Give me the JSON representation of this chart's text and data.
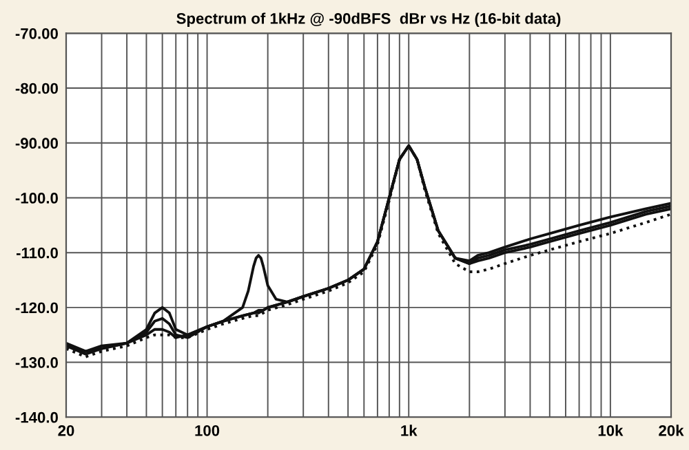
{
  "chart_data": {
    "type": "line",
    "title": "Spectrum of 1kHz @ -90dBFS  dBr vs Hz (16-bit data)",
    "x": [
      20,
      25,
      30,
      40,
      50,
      55,
      60,
      65,
      70,
      80,
      100,
      120,
      150,
      170,
      180,
      190,
      200,
      250,
      300,
      400,
      500,
      600,
      700,
      800,
      900,
      1000,
      1100,
      1200,
      1400,
      1700,
      2000,
      2200,
      2500,
      3000,
      4000,
      5000,
      7000,
      10000,
      15000,
      20000
    ],
    "series": [
      {
        "color": "#111111",
        "line_style": "solid",
        "x": [
          20,
          25,
          30,
          40,
          50,
          55,
          60,
          65,
          70,
          80,
          100,
          120,
          150,
          160,
          170,
          175,
          180,
          185,
          190,
          200,
          220,
          250,
          300,
          400,
          500,
          600,
          700,
          800,
          900,
          1000,
          1100,
          1200,
          1400,
          1700,
          2000,
          2200,
          2500,
          3000,
          4000,
          5000,
          7000,
          10000,
          15000,
          20000
        ],
        "values": [
          -127,
          -128,
          -127.5,
          -126.5,
          -124,
          -121,
          -120,
          -121,
          -124,
          -125,
          -123.5,
          -122.5,
          -120,
          -117,
          -112.5,
          -111,
          -110.5,
          -111,
          -112.5,
          -116,
          -118.5,
          -119,
          -118,
          -116.5,
          -115,
          -113,
          -108,
          -100,
          -93,
          -90.5,
          -93,
          -98,
          -106,
          -111,
          -111.5,
          -110.5,
          -110,
          -109,
          -107.5,
          -106.5,
          -105,
          -103.5,
          -102,
          -101
        ]
      },
      {
        "color": "#111111",
        "line_style": "solid",
        "values": [
          -127,
          -128.5,
          -127.5,
          -126.5,
          -124.5,
          -122.5,
          -122,
          -123,
          -125,
          -125.5,
          -123.5,
          -122.5,
          -121.5,
          -121,
          -120.5,
          -120.5,
          -120,
          -119,
          -118,
          -116.5,
          -115,
          -113,
          -108,
          -100,
          -93,
          -90.5,
          -93,
          -98,
          -106,
          -111,
          -112,
          -111,
          -110.5,
          -109.5,
          -108.5,
          -107.5,
          -106,
          -104.5,
          -102.5,
          -101.5
        ]
      },
      {
        "color": "#111111",
        "line_style": "solid",
        "values": [
          -126.5,
          -128,
          -127,
          -126.5,
          -125,
          -124,
          -124,
          -124.5,
          -125.5,
          -125,
          -123.5,
          -122.5,
          -121.5,
          -121,
          -121,
          -120.5,
          -120,
          -119,
          -118,
          -116.5,
          -115,
          -113,
          -108,
          -100,
          -93,
          -90.5,
          -93,
          -98,
          -106,
          -111,
          -112,
          -111.5,
          -111,
          -110,
          -109,
          -108,
          -106.5,
          -105,
          -103,
          -102
        ]
      },
      {
        "color": "#111111",
        "line_style": "dotted",
        "values": [
          -127.5,
          -129,
          -128,
          -127,
          -125.5,
          -125,
          -125,
          -125,
          -125.5,
          -125.5,
          -124,
          -123,
          -122,
          -121.5,
          -121.5,
          -121,
          -120.5,
          -119.5,
          -118.5,
          -117,
          -115.5,
          -113.5,
          -108.5,
          -100.5,
          -93,
          -90.5,
          -93,
          -98.5,
          -106.5,
          -112,
          -113.5,
          -113.5,
          -113,
          -112,
          -110.5,
          -109.5,
          -108,
          -106.5,
          -104.5,
          -103
        ]
      }
    ],
    "log": "x",
    "xlim": [
      20,
      20000
    ],
    "ylim": [
      -140,
      -70
    ],
    "xticks": [
      {
        "value": 20,
        "label": "20"
      },
      {
        "value": 30,
        "label": null
      },
      {
        "value": 40,
        "label": null
      },
      {
        "value": 50,
        "label": null
      },
      {
        "value": 60,
        "label": null
      },
      {
        "value": 70,
        "label": null
      },
      {
        "value": 80,
        "label": null
      },
      {
        "value": 90,
        "label": null
      },
      {
        "value": 100,
        "label": "100"
      },
      {
        "value": 200,
        "label": null
      },
      {
        "value": 300,
        "label": null
      },
      {
        "value": 400,
        "label": null
      },
      {
        "value": 500,
        "label": null
      },
      {
        "value": 600,
        "label": null
      },
      {
        "value": 700,
        "label": null
      },
      {
        "value": 800,
        "label": null
      },
      {
        "value": 900,
        "label": null
      },
      {
        "value": 1000,
        "label": "1k"
      },
      {
        "value": 2000,
        "label": null
      },
      {
        "value": 3000,
        "label": null
      },
      {
        "value": 4000,
        "label": null
      },
      {
        "value": 5000,
        "label": null
      },
      {
        "value": 6000,
        "label": null
      },
      {
        "value": 7000,
        "label": null
      },
      {
        "value": 8000,
        "label": null
      },
      {
        "value": 9000,
        "label": null
      },
      {
        "value": 10000,
        "label": "10k"
      },
      {
        "value": 20000,
        "label": "20k"
      }
    ],
    "yticks": [
      {
        "value": -70,
        "label": "-70.00"
      },
      {
        "value": -80,
        "label": "-80.00"
      },
      {
        "value": -90,
        "label": "-90.00"
      },
      {
        "value": -100,
        "label": "-100.0"
      },
      {
        "value": -110,
        "label": "-110.0"
      },
      {
        "value": -120,
        "label": "-120.0"
      },
      {
        "value": -130,
        "label": "-130.0"
      },
      {
        "value": -140,
        "label": "-140.0"
      }
    ],
    "grid": true
  }
}
